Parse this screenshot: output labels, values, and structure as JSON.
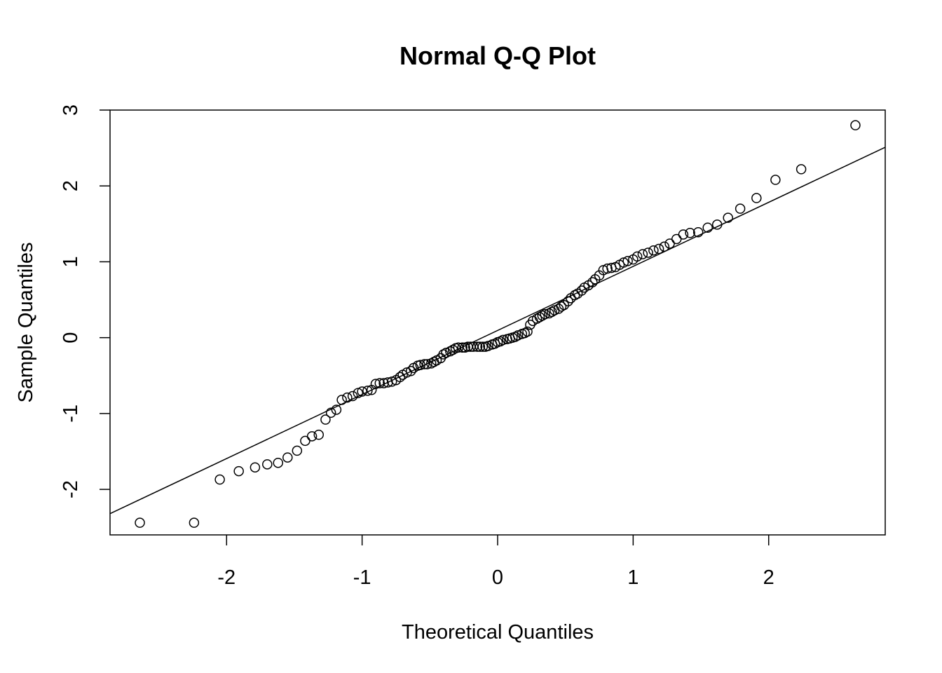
{
  "chart_data": {
    "type": "scatter",
    "title": "Normal Q-Q Plot",
    "xlabel": "Theoretical Quantiles",
    "ylabel": "Sample Quantiles",
    "xlim": [
      -2.86,
      2.86
    ],
    "ylim": [
      -2.6,
      3.0
    ],
    "xticks": [
      -2,
      -1,
      0,
      1,
      2
    ],
    "xtick_labels": [
      "-2",
      "-1",
      "0",
      "1",
      "2"
    ],
    "yticks": [
      -2,
      -1,
      0,
      1,
      2,
      3
    ],
    "ytick_labels": [
      "-2",
      "-1",
      "0",
      "1",
      "2",
      "3"
    ],
    "grid": false,
    "reference_line": {
      "x": [
        -2.86,
        2.86
      ],
      "y": [
        -2.32,
        2.51
      ]
    },
    "points": [
      [
        -2.64,
        -2.44
      ],
      [
        -2.24,
        -2.44
      ],
      [
        -2.05,
        -1.87
      ],
      [
        -1.91,
        -1.76
      ],
      [
        -1.79,
        -1.71
      ],
      [
        -1.7,
        -1.67
      ],
      [
        -1.62,
        -1.65
      ],
      [
        -1.55,
        -1.58
      ],
      [
        -1.48,
        -1.49
      ],
      [
        -1.42,
        -1.36
      ],
      [
        -1.37,
        -1.3
      ],
      [
        -1.32,
        -1.28
      ],
      [
        -1.27,
        -1.08
      ],
      [
        -1.23,
        -0.99
      ],
      [
        -1.19,
        -0.95
      ],
      [
        -1.15,
        -0.82
      ],
      [
        -1.11,
        -0.79
      ],
      [
        -1.07,
        -0.77
      ],
      [
        -1.03,
        -0.73
      ],
      [
        -1.0,
        -0.71
      ],
      [
        -0.96,
        -0.7
      ],
      [
        -0.93,
        -0.69
      ],
      [
        -0.9,
        -0.61
      ],
      [
        -0.87,
        -0.6
      ],
      [
        -0.84,
        -0.6
      ],
      [
        -0.81,
        -0.59
      ],
      [
        -0.78,
        -0.58
      ],
      [
        -0.75,
        -0.56
      ],
      [
        -0.72,
        -0.52
      ],
      [
        -0.7,
        -0.49
      ],
      [
        -0.67,
        -0.46
      ],
      [
        -0.64,
        -0.44
      ],
      [
        -0.62,
        -0.4
      ],
      [
        -0.59,
        -0.37
      ],
      [
        -0.57,
        -0.36
      ],
      [
        -0.54,
        -0.35
      ],
      [
        -0.52,
        -0.35
      ],
      [
        -0.49,
        -0.34
      ],
      [
        -0.47,
        -0.32
      ],
      [
        -0.45,
        -0.3
      ],
      [
        -0.42,
        -0.27
      ],
      [
        -0.4,
        -0.22
      ],
      [
        -0.38,
        -0.2
      ],
      [
        -0.35,
        -0.18
      ],
      [
        -0.33,
        -0.16
      ],
      [
        -0.31,
        -0.14
      ],
      [
        -0.29,
        -0.13
      ],
      [
        -0.26,
        -0.13
      ],
      [
        -0.24,
        -0.13
      ],
      [
        -0.22,
        -0.12
      ],
      [
        -0.2,
        -0.12
      ],
      [
        -0.18,
        -0.12
      ],
      [
        -0.15,
        -0.12
      ],
      [
        -0.13,
        -0.12
      ],
      [
        -0.11,
        -0.12
      ],
      [
        -0.09,
        -0.12
      ],
      [
        -0.07,
        -0.11
      ],
      [
        -0.04,
        -0.09
      ],
      [
        -0.02,
        -0.08
      ],
      [
        0.0,
        -0.06
      ],
      [
        0.02,
        -0.05
      ],
      [
        0.04,
        -0.03
      ],
      [
        0.07,
        -0.02
      ],
      [
        0.09,
        -0.01
      ],
      [
        0.11,
        0.0
      ],
      [
        0.13,
        0.01
      ],
      [
        0.15,
        0.03
      ],
      [
        0.18,
        0.05
      ],
      [
        0.2,
        0.06
      ],
      [
        0.22,
        0.08
      ],
      [
        0.24,
        0.17
      ],
      [
        0.26,
        0.22
      ],
      [
        0.29,
        0.25
      ],
      [
        0.31,
        0.27
      ],
      [
        0.33,
        0.29
      ],
      [
        0.35,
        0.31
      ],
      [
        0.38,
        0.32
      ],
      [
        0.4,
        0.34
      ],
      [
        0.42,
        0.36
      ],
      [
        0.45,
        0.38
      ],
      [
        0.47,
        0.41
      ],
      [
        0.49,
        0.43
      ],
      [
        0.52,
        0.48
      ],
      [
        0.54,
        0.52
      ],
      [
        0.57,
        0.56
      ],
      [
        0.59,
        0.58
      ],
      [
        0.62,
        0.62
      ],
      [
        0.64,
        0.66
      ],
      [
        0.67,
        0.69
      ],
      [
        0.7,
        0.73
      ],
      [
        0.72,
        0.77
      ],
      [
        0.75,
        0.82
      ],
      [
        0.78,
        0.89
      ],
      [
        0.81,
        0.91
      ],
      [
        0.84,
        0.92
      ],
      [
        0.87,
        0.93
      ],
      [
        0.9,
        0.96
      ],
      [
        0.93,
        0.99
      ],
      [
        0.96,
        1.01
      ],
      [
        1.0,
        1.03
      ],
      [
        1.03,
        1.07
      ],
      [
        1.07,
        1.1
      ],
      [
        1.11,
        1.12
      ],
      [
        1.15,
        1.15
      ],
      [
        1.19,
        1.17
      ],
      [
        1.23,
        1.2
      ],
      [
        1.27,
        1.24
      ],
      [
        1.32,
        1.3
      ],
      [
        1.37,
        1.36
      ],
      [
        1.42,
        1.38
      ],
      [
        1.48,
        1.39
      ],
      [
        1.55,
        1.45
      ],
      [
        1.62,
        1.49
      ],
      [
        1.7,
        1.58
      ],
      [
        1.79,
        1.7
      ],
      [
        1.91,
        1.84
      ],
      [
        2.05,
        2.08
      ],
      [
        2.24,
        2.22
      ],
      [
        2.64,
        2.8
      ]
    ]
  }
}
